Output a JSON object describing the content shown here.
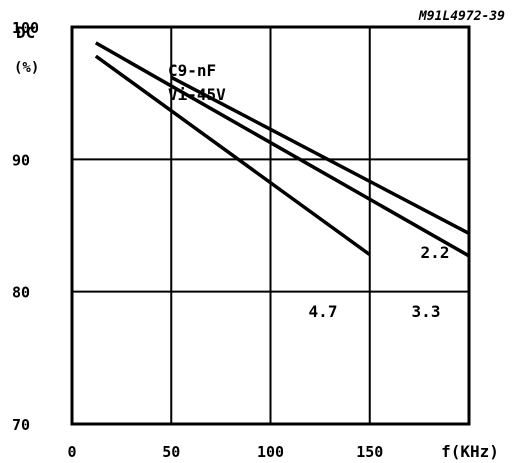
{
  "chart_data": {
    "type": "line",
    "figure_code": "M91L4972-39",
    "ylabel": "DC",
    "yunit": "(%)",
    "xlabel": "f(KHz)",
    "xlim": [
      0,
      200
    ],
    "ylim": [
      70,
      100
    ],
    "xticks": [
      "0",
      "50",
      "100",
      "150"
    ],
    "yticks": [
      "100",
      "90",
      "80",
      "70"
    ],
    "grid": true,
    "annotation": [
      "C9-nF",
      "Vi-45V"
    ],
    "series": [
      {
        "name": "2.2",
        "x": [
          50,
          200
        ],
        "y": [
          96.2,
          84.4
        ]
      },
      {
        "name": "3.3",
        "x": [
          12,
          200
        ],
        "y": [
          98.8,
          82.7
        ]
      },
      {
        "name": "4.7",
        "x": [
          12,
          150
        ],
        "y": [
          97.8,
          82.8
        ]
      }
    ]
  }
}
